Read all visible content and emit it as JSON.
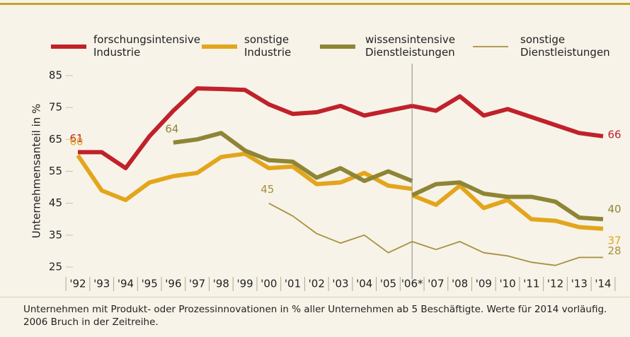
{
  "chart_data": {
    "type": "line",
    "ylabel": "Unternehmensanteil in %",
    "categories": [
      "'92",
      "'93",
      "'94",
      "'95",
      "'96",
      "'97",
      "'98",
      "'99",
      "'00",
      "'01",
      "'02",
      "'03",
      "'04",
      "'05",
      "'06*",
      "'07",
      "'08",
      "'09",
      "'10",
      "'11",
      "'12",
      "'13",
      "'14"
    ],
    "break_category": "'06*",
    "ylim": [
      25,
      85
    ],
    "yticks": [
      25,
      35,
      45,
      55,
      65,
      75,
      85
    ],
    "series": [
      {
        "name": "forschungsintensive Industrie",
        "color": "#c0212b",
        "width": 6,
        "segments": [
          [
            61,
            61,
            56,
            66,
            74,
            81,
            80.8,
            80.5,
            76,
            73,
            73.5,
            75.5,
            72.5,
            74,
            75.5
          ],
          [
            75.5,
            74,
            78.5,
            72.5,
            74.5,
            72,
            69.5,
            67,
            66
          ]
        ]
      },
      {
        "name": "sonstige Industrie",
        "color": "#e3a51c",
        "width": 6,
        "segments": [
          [
            60,
            49,
            46,
            51.5,
            53.5,
            54.5,
            59.5,
            60.5,
            56,
            56.5,
            51,
            51.5,
            54.5,
            50.5,
            49.5
          ],
          [
            47.5,
            44.5,
            50.5,
            43.5,
            46,
            40,
            39.5,
            37.5,
            37
          ]
        ]
      },
      {
        "name": "wissensintensive Dienstleistungen",
        "color": "#8e8535",
        "width": 6,
        "segments": [
          [
            null,
            null,
            null,
            null,
            64,
            65,
            67,
            61.5,
            58.5,
            58,
            53,
            56,
            52,
            55,
            52
          ],
          [
            47.5,
            51,
            51.5,
            48,
            47,
            47,
            45.5,
            40.5,
            40
          ]
        ]
      },
      {
        "name": "sonstige Dienstleistungen",
        "color": "#a8903d",
        "width": 1.8,
        "segments": [
          [
            null,
            null,
            null,
            null,
            null,
            null,
            null,
            null,
            45,
            41,
            35.5,
            32.5,
            35,
            29.5,
            33
          ],
          [
            33,
            30.5,
            33,
            29.5,
            28.5,
            26.5,
            25.5,
            28,
            28
          ]
        ]
      }
    ],
    "caption": "Unternehmen mit Produkt- oder Prozessinnovationen in % aller Unternehmen ab 5 Beschäftigte. Werte für 2014 vorläufig. 2006 Bruch in der Zeitreihe."
  }
}
